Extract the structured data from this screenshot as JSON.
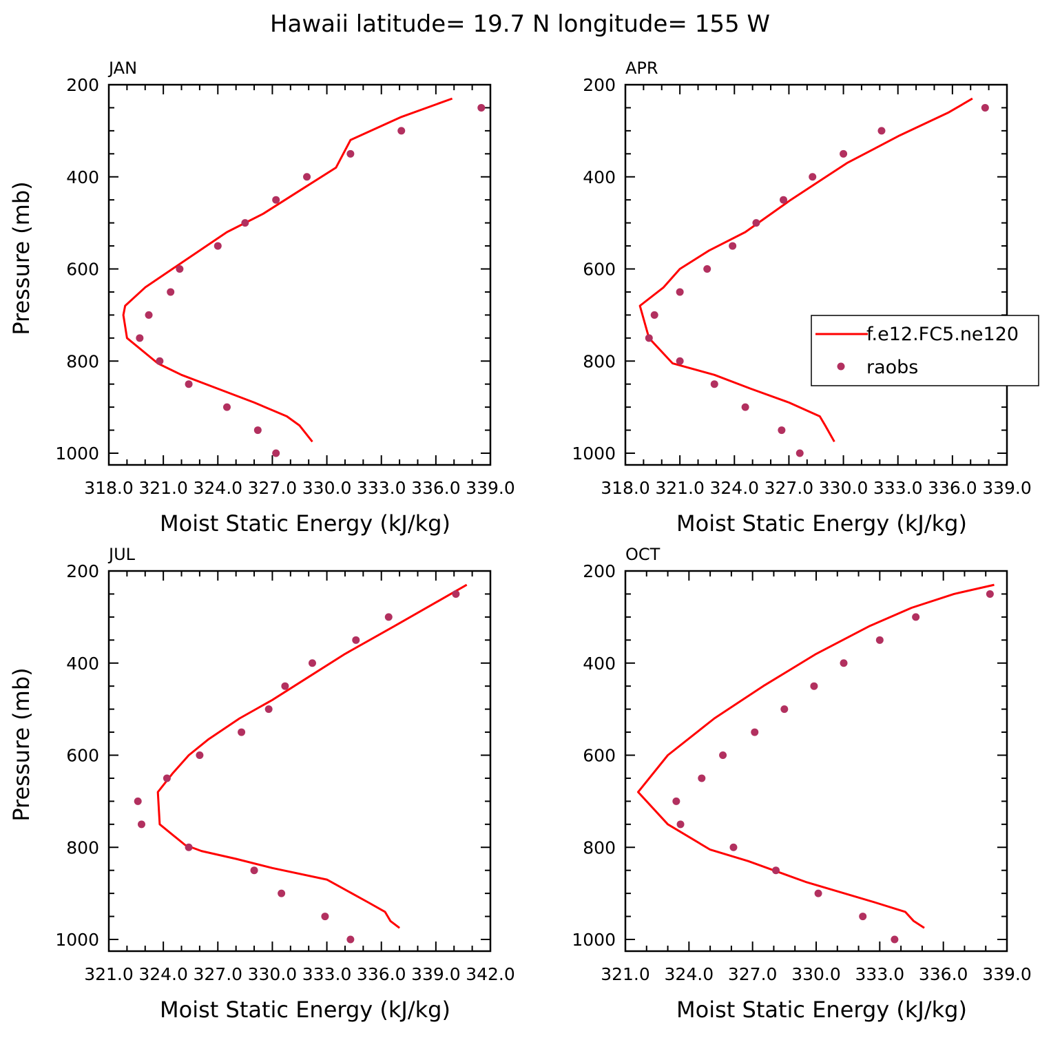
{
  "figure": {
    "title": "Hawaii  latitude= 19.7 N longitude= 155 W"
  },
  "legend": {
    "model_label": "f.e12.FC5.ne120",
    "obs_label": "raobs"
  },
  "colors": {
    "model_line": "#ff0000",
    "obs_marker": "#b2305f",
    "axes": "#000000"
  },
  "chart_data": [
    {
      "type": "line",
      "panel_title": "JAN",
      "xlabel": "Moist Static Energy (kJ/kg)",
      "ylabel": "Pressure (mb)",
      "xlim": [
        318.0,
        339.0
      ],
      "ylim": [
        1000,
        200
      ],
      "y_inverted": true,
      "xtick_labels": [
        "318.0",
        "321.0",
        "324.0",
        "327.0",
        "330.0",
        "333.0",
        "336.0",
        "339.0"
      ],
      "xticks": [
        318,
        321,
        324,
        327,
        330,
        333,
        336,
        339
      ],
      "yticks": [
        200,
        400,
        600,
        800,
        1000
      ],
      "show_ylabel": true,
      "series": [
        {
          "name": "f.e12.FC5.ne120",
          "kind": "line",
          "x": [
            329.2,
            328.5,
            327.8,
            326.0,
            324.0,
            322.0,
            320.7,
            319.0,
            318.8,
            318.9,
            320.0,
            321.5,
            323.0,
            324.5,
            326.5,
            328.5,
            330.5,
            331.3,
            334.1,
            336.9
          ],
          "y": [
            975,
            940,
            920,
            890,
            860,
            830,
            805,
            750,
            700,
            680,
            640,
            600,
            560,
            520,
            480,
            430,
            380,
            320,
            270,
            230
          ]
        },
        {
          "name": "raobs",
          "kind": "scatter",
          "x": [
            327.2,
            326.2,
            324.5,
            322.4,
            320.8,
            319.7,
            320.2,
            321.4,
            321.9,
            324.0,
            325.5,
            327.2,
            328.9,
            331.3,
            334.1,
            338.5
          ],
          "y": [
            1000,
            950,
            900,
            850,
            800,
            750,
            700,
            650,
            600,
            550,
            500,
            450,
            400,
            350,
            300,
            250
          ]
        }
      ]
    },
    {
      "type": "line",
      "panel_title": "APR",
      "xlabel": "Moist Static Energy (kJ/kg)",
      "ylabel": "",
      "xlim": [
        318.0,
        339.0
      ],
      "ylim": [
        1000,
        200
      ],
      "y_inverted": true,
      "xtick_labels": [
        "318.0",
        "321.0",
        "324.0",
        "327.0",
        "330.0",
        "333.0",
        "336.0",
        "339.0"
      ],
      "xticks": [
        318,
        321,
        324,
        327,
        330,
        333,
        336,
        339
      ],
      "yticks": [
        200,
        400,
        600,
        800,
        1000
      ],
      "show_ylabel": false,
      "legend": true,
      "series": [
        {
          "name": "f.e12.FC5.ne120",
          "kind": "line",
          "x": [
            329.5,
            329.0,
            328.7,
            327.0,
            324.9,
            322.9,
            320.6,
            319.3,
            318.8,
            320.1,
            321.0,
            322.6,
            324.6,
            327.1,
            330.2,
            333.1,
            335.8,
            337.1
          ],
          "y": [
            975,
            940,
            920,
            890,
            860,
            830,
            805,
            750,
            680,
            640,
            600,
            560,
            520,
            450,
            370,
            310,
            260,
            230
          ]
        },
        {
          "name": "raobs",
          "kind": "scatter",
          "x": [
            327.6,
            326.6,
            324.6,
            322.9,
            321.0,
            319.3,
            319.6,
            321.0,
            322.5,
            323.9,
            325.2,
            326.7,
            328.3,
            330.0,
            332.1,
            337.8
          ],
          "y": [
            1000,
            950,
            900,
            850,
            800,
            750,
            700,
            650,
            600,
            550,
            500,
            450,
            400,
            350,
            300,
            250
          ]
        }
      ]
    },
    {
      "type": "line",
      "panel_title": "JUL",
      "xlabel": "Moist Static Energy (kJ/kg)",
      "ylabel": "Pressure (mb)",
      "xlim": [
        321.0,
        342.0
      ],
      "ylim": [
        1000,
        200
      ],
      "y_inverted": true,
      "xtick_labels": [
        "321.0",
        "324.0",
        "327.0",
        "330.0",
        "333.0",
        "336.0",
        "339.0",
        "342.0"
      ],
      "xticks": [
        321,
        324,
        327,
        330,
        333,
        336,
        339,
        342
      ],
      "yticks": [
        200,
        400,
        600,
        800,
        1000
      ],
      "show_ylabel": true,
      "series": [
        {
          "name": "f.e12.FC5.ne120",
          "kind": "line",
          "x": [
            337.0,
            336.5,
            336.2,
            335.3,
            333.0,
            330.0,
            328.0,
            326.1,
            325.2,
            323.8,
            323.7,
            324.5,
            325.4,
            326.5,
            328.2,
            330.0,
            332.0,
            334.0,
            336.7,
            340.7
          ],
          "y": [
            975,
            960,
            940,
            920,
            870,
            845,
            825,
            808,
            795,
            750,
            680,
            640,
            600,
            565,
            520,
            480,
            430,
            380,
            320,
            230
          ]
        },
        {
          "name": "raobs",
          "kind": "scatter",
          "x": [
            334.3,
            332.9,
            330.5,
            329.0,
            325.4,
            322.8,
            322.6,
            324.2,
            326.0,
            328.3,
            329.8,
            330.7,
            332.2,
            334.6,
            336.4,
            340.1
          ],
          "y": [
            1000,
            950,
            900,
            850,
            800,
            750,
            700,
            650,
            600,
            550,
            500,
            450,
            400,
            350,
            300,
            250
          ]
        }
      ]
    },
    {
      "type": "line",
      "panel_title": "OCT",
      "xlabel": "Moist Static Energy (kJ/kg)",
      "ylabel": "",
      "xlim": [
        321.0,
        339.0
      ],
      "ylim": [
        1000,
        200
      ],
      "y_inverted": true,
      "xtick_labels": [
        "321.0",
        "324.0",
        "327.0",
        "330.0",
        "333.0",
        "336.0",
        "339.0"
      ],
      "xticks": [
        321,
        324,
        327,
        330,
        333,
        336,
        339
      ],
      "yticks": [
        200,
        400,
        600,
        800,
        1000
      ],
      "show_ylabel": false,
      "series": [
        {
          "name": "f.e12.FC5.ne120",
          "kind": "line",
          "x": [
            335.1,
            334.6,
            334.2,
            332.8,
            329.5,
            326.8,
            325.0,
            323.0,
            321.6,
            323.0,
            325.2,
            327.5,
            330.0,
            332.5,
            334.5,
            336.5,
            338.4
          ],
          "y": [
            975,
            960,
            940,
            920,
            875,
            830,
            805,
            750,
            680,
            600,
            520,
            450,
            380,
            320,
            280,
            250,
            230
          ]
        },
        {
          "name": "raobs",
          "kind": "scatter",
          "x": [
            333.7,
            332.2,
            330.1,
            328.1,
            326.1,
            323.6,
            323.4,
            324.6,
            325.6,
            327.1,
            328.5,
            329.9,
            331.3,
            333.0,
            334.7,
            338.2
          ],
          "y": [
            1000,
            950,
            900,
            850,
            800,
            750,
            700,
            650,
            600,
            550,
            500,
            450,
            400,
            350,
            300,
            250
          ]
        }
      ]
    }
  ]
}
